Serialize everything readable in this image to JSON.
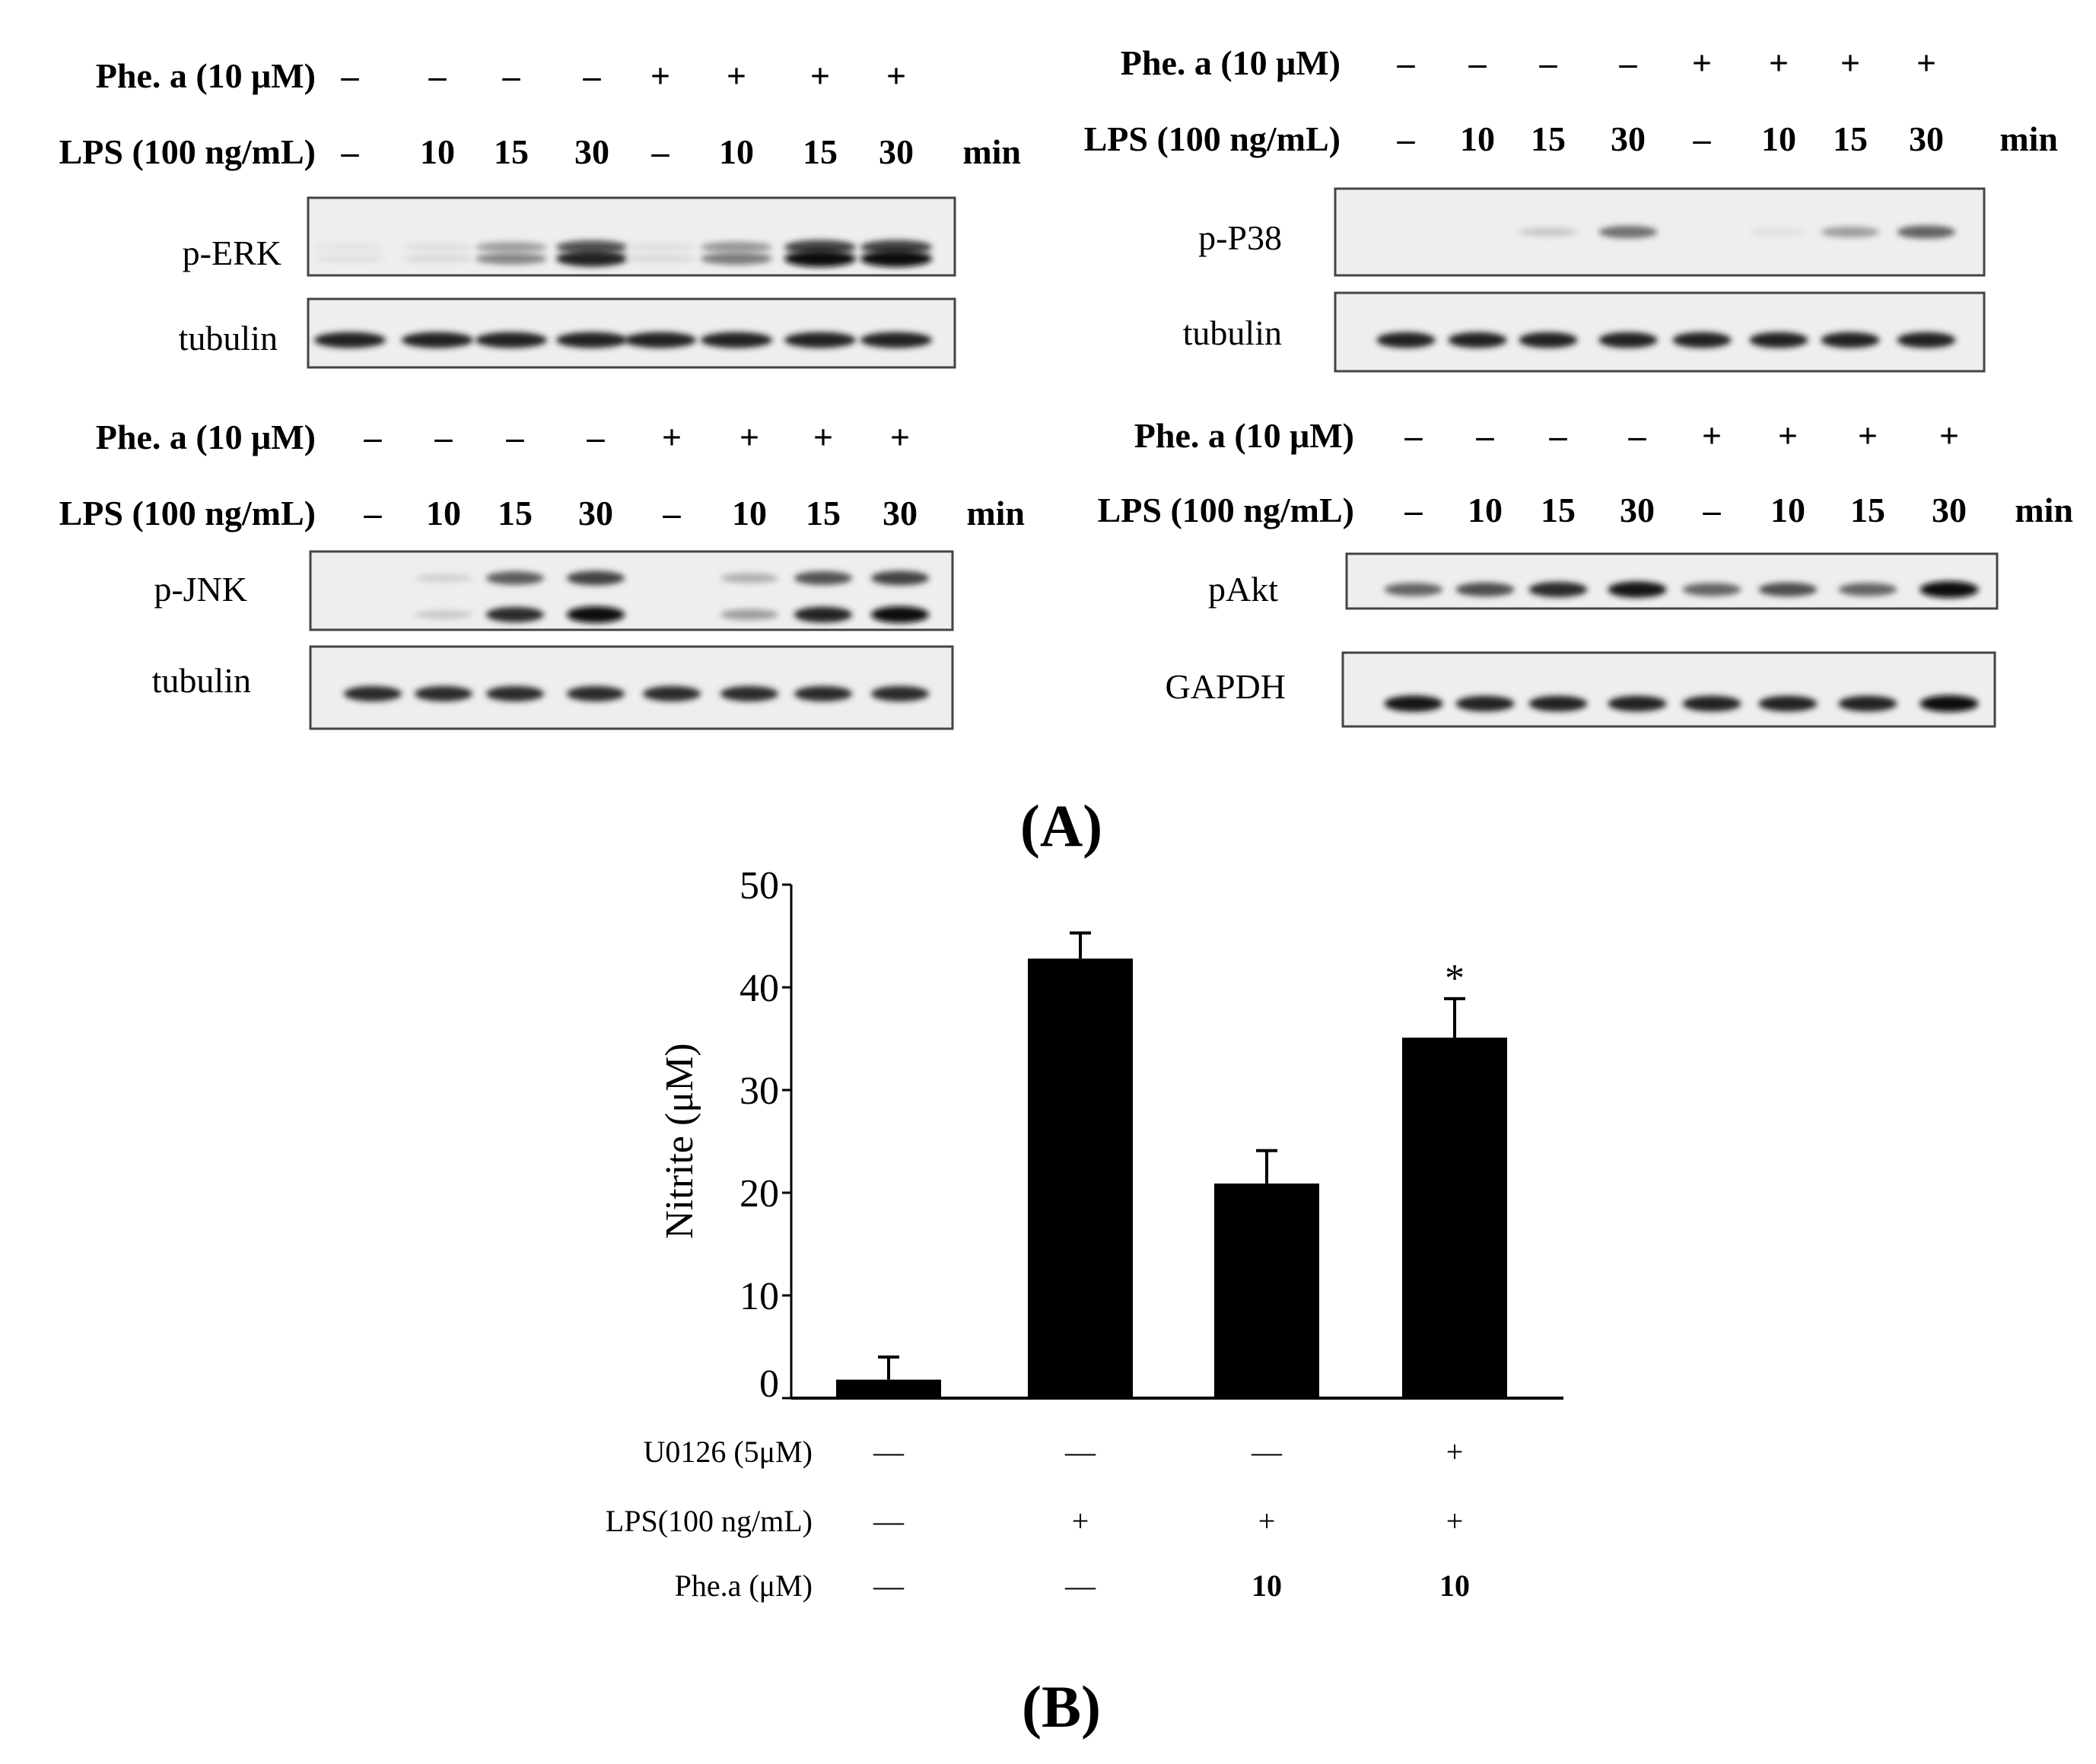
{
  "panel_a": {
    "label": "(A)",
    "blots": [
      {
        "phe_label": "Phe. a (10 μM)",
        "lps_label": "LPS (100 ng/mL)",
        "phe": [
          "–",
          "–",
          "–",
          "–",
          "+",
          "+",
          "+",
          "+"
        ],
        "lps": [
          "–",
          "10",
          "15",
          "30",
          "–",
          "10",
          "15",
          "30"
        ],
        "unit": "min",
        "rows": [
          {
            "name": "p-ERK",
            "intensity": [
              0.05,
              0.08,
              0.45,
              0.9,
              0.08,
              0.5,
              1.0,
              1.0
            ],
            "doublet": true
          },
          {
            "name": "tubulin",
            "intensity": [
              0.9,
              0.9,
              0.9,
              0.9,
              0.9,
              0.9,
              0.9,
              0.9
            ],
            "doublet": false
          }
        ]
      },
      {
        "phe_label": "Phe. a (10 μM)",
        "lps_label": "LPS (100 ng/mL)",
        "phe": [
          "–",
          "–",
          "–",
          "–",
          "+",
          "+",
          "+",
          "+"
        ],
        "lps": [
          "–",
          "10",
          "15",
          "30",
          "–",
          "10",
          "15",
          "30"
        ],
        "unit": "min",
        "rows": [
          {
            "name": "p-P38",
            "intensity": [
              0.0,
              0.0,
              0.15,
              0.55,
              0.0,
              0.05,
              0.35,
              0.6
            ],
            "doublet": false
          },
          {
            "name": "tubulin",
            "intensity": [
              0.9,
              0.9,
              0.9,
              0.9,
              0.9,
              0.9,
              0.9,
              0.9
            ],
            "doublet": false
          }
        ]
      },
      {
        "phe_label": "Phe. a (10 μM)",
        "lps_label": "LPS (100 ng/mL)",
        "phe": [
          "–",
          "–",
          "–",
          "–",
          "+",
          "+",
          "+",
          "+"
        ],
        "lps": [
          "–",
          "10",
          "15",
          "30",
          "–",
          "10",
          "15",
          "30"
        ],
        "unit": "min",
        "rows": [
          {
            "name": "p-JNK",
            "intensity": [
              0.0,
              0.15,
              0.85,
              1.0,
              0.0,
              0.35,
              0.9,
              1.0
            ],
            "doublet": true
          },
          {
            "name": "tubulin",
            "intensity": [
              0.85,
              0.85,
              0.85,
              0.85,
              0.85,
              0.85,
              0.85,
              0.85
            ],
            "doublet": false
          }
        ]
      },
      {
        "phe_label": "Phe. a (10 μM)",
        "lps_label": "LPS (100 ng/mL)",
        "phe": [
          "–",
          "–",
          "–",
          "–",
          "+",
          "+",
          "+",
          "+"
        ],
        "lps": [
          "–",
          "10",
          "15",
          "30",
          "–",
          "10",
          "15",
          "30"
        ],
        "unit": "min",
        "rows": [
          {
            "name": "pAkt",
            "intensity": [
              0.6,
              0.7,
              0.85,
              0.95,
              0.6,
              0.7,
              0.6,
              1.0
            ],
            "doublet": false
          },
          {
            "name": "GAPDH",
            "intensity": [
              0.95,
              0.9,
              0.9,
              0.9,
              0.9,
              0.9,
              0.9,
              1.0
            ],
            "doublet": false
          }
        ]
      }
    ]
  },
  "panel_b": {
    "label": "(B)"
  },
  "chart_data": {
    "type": "bar",
    "ylabel": "Nitrite (μM)",
    "ylim": [
      0,
      50
    ],
    "yticks": [
      0,
      10,
      20,
      30,
      40,
      50
    ],
    "values": [
      1.8,
      42.8,
      20.9,
      35.1
    ],
    "errors": [
      2.2,
      2.5,
      3.2,
      3.8
    ],
    "significance": [
      "",
      "",
      "",
      "*"
    ],
    "conditions": [
      {
        "label": "U0126 (5μM)",
        "values": [
          "—",
          "—",
          "—",
          "+"
        ]
      },
      {
        "label": "LPS(100 ng/mL)",
        "values": [
          "—",
          "+",
          "+",
          "+"
        ]
      },
      {
        "label": "Phe.a (μM)",
        "values": [
          "—",
          "—",
          "10",
          "10"
        ]
      }
    ],
    "bar_color": "#000000"
  }
}
